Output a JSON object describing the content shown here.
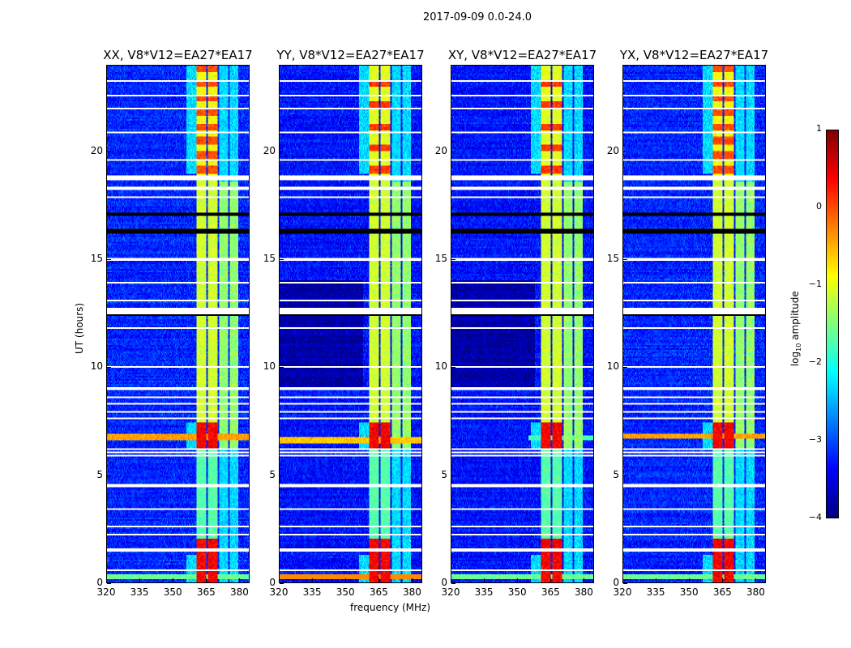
{
  "figure": {
    "suptitle": "2017-09-09 0.0-24.0",
    "ylabel": "UT (hours)",
    "xlabel": "frequency (MHz)"
  },
  "colorbar": {
    "label_prefix": "log",
    "label_sub": "10",
    "label_suffix": " amplitude",
    "range": [
      -4,
      1
    ],
    "ticks": [
      "1",
      "0",
      "−1",
      "−2",
      "−3",
      "−4"
    ],
    "colormap": "jet"
  },
  "chart_data": {
    "type": "heatmap",
    "title": "2017-09-09 0.0-24.0",
    "xlabel": "frequency (MHz)",
    "ylabel": "UT (hours)",
    "xlim": [
      320,
      384.6
    ],
    "ylim": [
      0,
      24
    ],
    "xticks": [
      "320",
      "335",
      "350",
      "365",
      "380"
    ],
    "yticks": [
      "0",
      "5",
      "10",
      "15",
      "20"
    ],
    "value_label": "log10 amplitude",
    "value_range": [
      -4,
      1
    ],
    "panels": [
      {
        "title": "XX, V8*V12=EA27*EA17",
        "background_level": -3.2,
        "rfi_hour": 6.75,
        "rfi_level": -0.4,
        "dark_region": null
      },
      {
        "title": "YY, V8*V12=EA27*EA17",
        "background_level": -3.3,
        "rfi_hour": 6.6,
        "rfi_level": -0.6,
        "dark_region": [
          9.0,
          14.0
        ]
      },
      {
        "title": "XY, V8*V12=EA27*EA17",
        "background_level": -3.3,
        "rfi_hour": 6.7,
        "rfi_level": -1.8,
        "dark_region": [
          9.0,
          14.0
        ]
      },
      {
        "title": "YX, V8*V12=EA27*EA17",
        "background_level": -3.2,
        "rfi_hour": 6.8,
        "rfi_level": -0.4,
        "dark_region": null
      }
    ],
    "strong_bands_mhz": [
      [
        361,
        365.3
      ],
      [
        366,
        370.4
      ]
    ],
    "moderate_bands_mhz": [
      [
        371,
        375
      ],
      [
        376,
        380
      ]
    ],
    "flagged_hours_white": [
      0.55,
      1.5,
      2.2,
      2.6,
      3.4,
      4.5,
      5.9,
      6.05,
      6.2,
      7.6,
      7.9,
      8.3,
      8.6,
      9.0,
      10.0,
      11.8,
      12.6,
      13.1,
      13.9,
      15.0,
      17.9,
      18.3,
      18.8,
      19.6,
      20.9,
      22.0,
      22.6,
      23.3
    ],
    "flagged_hours_black": [
      16.3,
      17.1,
      12.4
    ]
  }
}
